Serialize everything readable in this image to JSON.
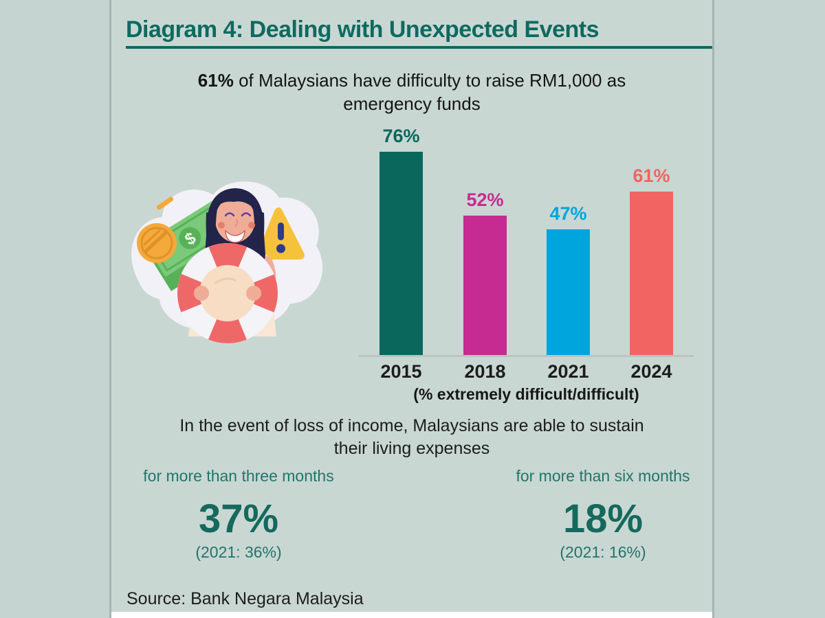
{
  "title": "Diagram 4: Dealing with Unexpected Events",
  "subtitle": {
    "lead": "61%",
    "line1_rest": " of Malaysians have difficulty to raise RM1,000 as",
    "line2": "emergency funds"
  },
  "chart_data": {
    "type": "bar",
    "title": "61% of Malaysians have difficulty to raise RM1,000 as emergency funds",
    "categories": [
      "2015",
      "2018",
      "2021",
      "2024"
    ],
    "values": [
      76,
      52,
      47,
      61
    ],
    "value_labels": [
      "76%",
      "52%",
      "47%",
      "61%"
    ],
    "colors": [
      "#0a675c",
      "#c52b90",
      "#00a5dd",
      "#f26461"
    ],
    "caption": "(% extremely difficult/difficult)",
    "xlabel": "",
    "ylabel": "",
    "ylim": [
      0,
      100
    ],
    "grid": false,
    "legend": "none"
  },
  "sustain": {
    "heading_line1": "In the event of loss of income, Malaysians are able to sustain",
    "heading_line2": "their living expenses",
    "items": [
      {
        "label": "for more than three months",
        "value": "37%",
        "note": "(2021: 36%)"
      },
      {
        "label": "for more than six months",
        "value": "18%",
        "note": "(2021: 16%)"
      }
    ]
  },
  "source": "Source: Bank Negara Malaysia",
  "illustration": {
    "name": "woman-holding-lifebuoy",
    "elements": [
      "money-bill",
      "gold-coin",
      "warning-triangle",
      "lifebuoy"
    ],
    "dollar_sign": "$",
    "warning_mark": "!"
  },
  "colors": {
    "accent_teal": "#0d6a60",
    "panel_bg": "#c9d7d3",
    "stat_teal": "#20756a",
    "stat_value_teal": "#15695d"
  }
}
